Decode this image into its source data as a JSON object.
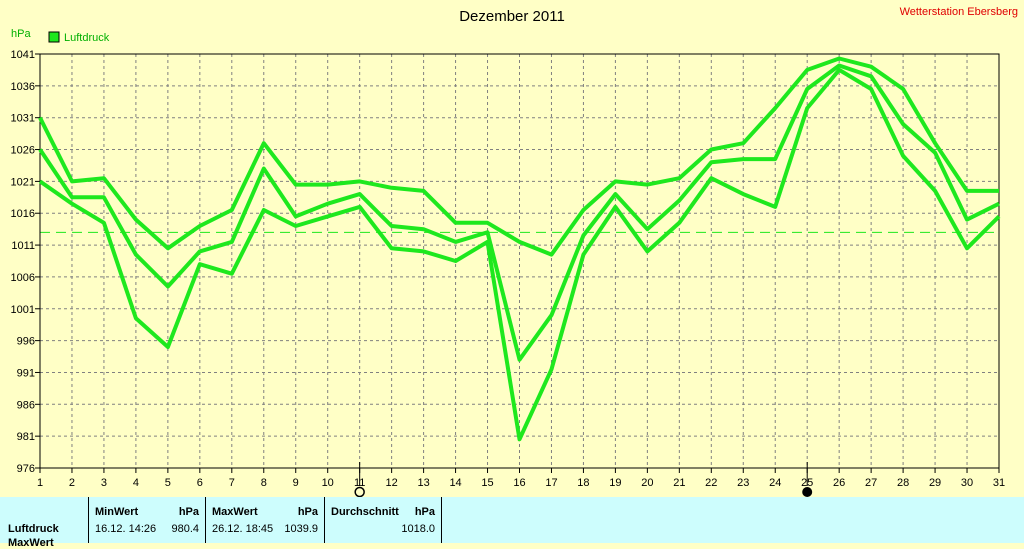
{
  "chart_data": {
    "type": "line",
    "title": "Dezember 2011",
    "ylabel": "hPa",
    "ylim": [
      976,
      1041
    ],
    "yticks": [
      976,
      981,
      986,
      991,
      996,
      1001,
      1006,
      1011,
      1016,
      1021,
      1026,
      1031,
      1036,
      1041
    ],
    "x": [
      1,
      2,
      3,
      4,
      5,
      6,
      7,
      8,
      9,
      10,
      11,
      12,
      13,
      14,
      15,
      16,
      17,
      18,
      19,
      20,
      21,
      22,
      23,
      24,
      25,
      26,
      27,
      28,
      29,
      30,
      31
    ],
    "average_line": 1013,
    "legend": [
      "Luftdruck"
    ],
    "grid": true,
    "series": [
      {
        "name": "Luftdruck",
        "role": "max",
        "values": [
          1031,
          1021,
          1021.5,
          1015,
          1010.5,
          1014,
          1016.5,
          1027,
          1020.5,
          1020.5,
          1021,
          1020,
          1019.5,
          1014.5,
          1014.5,
          1011.5,
          1009.5,
          1016.5,
          1021,
          1020.5,
          1021.5,
          1026,
          1027,
          1032.5,
          1038.5,
          1040.3,
          1039,
          1035.5,
          1027,
          1019.5,
          1019.5
        ]
      },
      {
        "name": "Luftdruck",
        "role": "mean",
        "values": [
          1026,
          1018.5,
          1018.5,
          1009.5,
          1004.5,
          1010,
          1011.5,
          1023,
          1015.5,
          1017.5,
          1019,
          1014,
          1013.5,
          1011.5,
          1013,
          993,
          1000,
          1012.5,
          1019,
          1013.5,
          1018,
          1024,
          1024.5,
          1024.5,
          1035.5,
          1039.2,
          1037.5,
          1030,
          1025.5,
          1015,
          1017.5
        ]
      },
      {
        "name": "Luftdruck",
        "role": "min",
        "values": [
          1021,
          1017.5,
          1014.5,
          999.5,
          995,
          1008,
          1006.5,
          1016.5,
          1014,
          1015.5,
          1017,
          1010.5,
          1010,
          1008.5,
          1011.5,
          980.5,
          991.5,
          1009.5,
          1017,
          1010,
          1014.5,
          1021.5,
          1019,
          1017,
          1032.5,
          1038.5,
          1035.5,
          1025,
          1019.5,
          1010.5,
          1015.5
        ]
      }
    ]
  },
  "header": {
    "title": "Dezember 2011",
    "unit": "hPa",
    "brand": "Wetterstation Ebersberg",
    "legend_label": "Luftdruck"
  },
  "colors": {
    "line": "#1ee81e",
    "grid": "#808080",
    "bg": "#ffffc6",
    "brand": "#e00000",
    "stats_bg": "#cdfdfd"
  },
  "markers": {
    "moon_open_day": 11,
    "moon_filled_day": 25
  },
  "stats": {
    "row1": "Luftdruck",
    "row2": "MaxWert",
    "min_header": "MinWert",
    "min_unit": "hPa",
    "min_date": "16.12. 14:26",
    "min_value": "980.4",
    "max_header": "MaxWert",
    "max_unit": "hPa",
    "max_date": "26.12. 18:45",
    "max_value": "1039.9",
    "avg_header": "Durchschnitt",
    "avg_unit": "hPa",
    "avg_value": "1018.0"
  }
}
